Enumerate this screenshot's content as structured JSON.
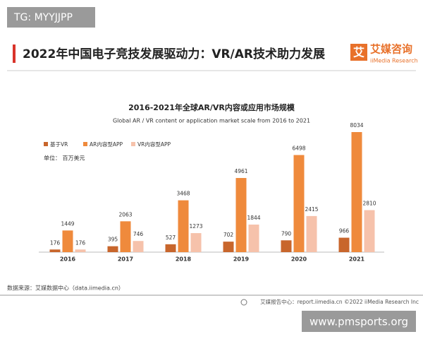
{
  "watermark": "TG: MYYJJPP",
  "header": {
    "title": "2022年中国电子竞技发展驱动力：VR/AR技术助力发展",
    "logo_mark": "艾",
    "logo_name": "艾媒咨询",
    "logo_sub": "iiMedia Research"
  },
  "chart_data": {
    "type": "bar",
    "title": "2016-2021年全球AR/VR内容或应用市场规模",
    "subtitle": "Global AR / VR content or application market scale from 2016 to 2021",
    "unit": "单位：  百万美元",
    "categories": [
      "2016",
      "2017",
      "2018",
      "2019",
      "2020",
      "2021"
    ],
    "series": [
      {
        "name": "基于VR",
        "color": "#c8662c",
        "values": [
          176,
          395,
          527,
          702,
          790,
          966
        ]
      },
      {
        "name": "AR内容型APP",
        "color": "#ef8a3c",
        "values": [
          1449,
          2063,
          3468,
          4961,
          6498,
          8034
        ]
      },
      {
        "name": "VR内容型APP",
        "color": "#f6c2ab",
        "values": [
          176,
          746,
          1273,
          1844,
          2415,
          2810
        ]
      }
    ],
    "legend": "top-left"
  },
  "source": "数据来源：艾媒数据中心（data.iimedia.cn）",
  "footer": "艾媒报告中心：report.iimedia.cn   ©2022  iiMedia Research  Inc",
  "site": "www.pmsports.org"
}
